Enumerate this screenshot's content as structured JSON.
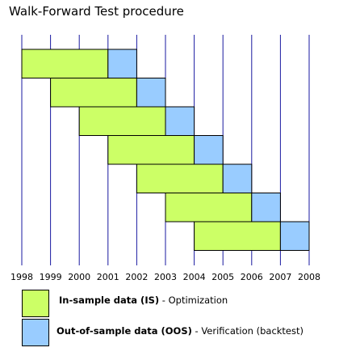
{
  "title": "Walk-Forward Test procedure",
  "years": [
    "1998",
    "1999",
    "2000",
    "2001",
    "2002",
    "2003",
    "2004",
    "2005",
    "2006",
    "2007",
    "2008"
  ],
  "windows": [
    {
      "is_start": "1998",
      "is_end": "2001",
      "oos_end": "2002"
    },
    {
      "is_start": "1999",
      "is_end": "2002",
      "oos_end": "2003"
    },
    {
      "is_start": "2000",
      "is_end": "2003",
      "oos_end": "2004"
    },
    {
      "is_start": "2001",
      "is_end": "2004",
      "oos_end": "2005"
    },
    {
      "is_start": "2002",
      "is_end": "2005",
      "oos_end": "2006"
    },
    {
      "is_start": "2003",
      "is_end": "2006",
      "oos_end": "2007"
    },
    {
      "is_start": "2004",
      "is_end": "2007",
      "oos_end": "2008"
    }
  ],
  "colors": {
    "in_sample": "#ccff66",
    "out_of_sample": "#99ccff",
    "year_line": "#1a1aa0",
    "border": "#000000"
  },
  "legend": {
    "in_sample": {
      "bold": "In-sample data (IS)",
      "rest": " - Optimization"
    },
    "out_of_sample": {
      "bold": "Out-of-sample data (OOS)",
      "rest": " - Verification (backtest)"
    }
  }
}
